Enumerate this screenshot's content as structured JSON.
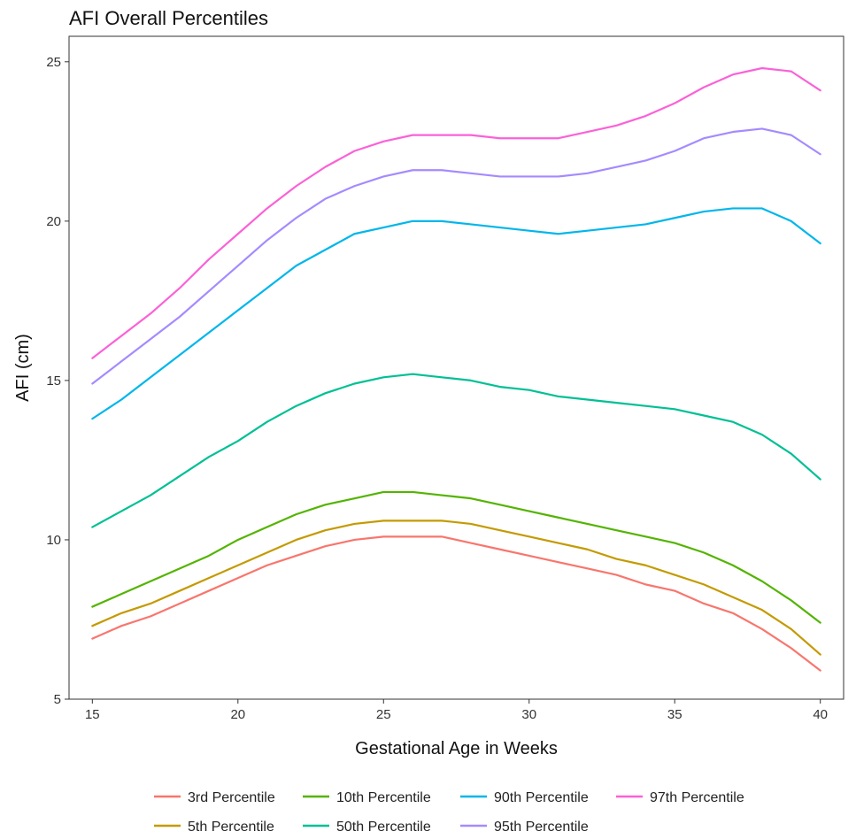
{
  "chart_data": {
    "type": "line",
    "title": "AFI Overall Percentiles",
    "xlabel": "Gestational Age in Weeks",
    "ylabel": "AFI (cm)",
    "xlim": [
      14.2,
      40.8
    ],
    "ylim": [
      5,
      25.8
    ],
    "xticks": [
      "15",
      "20",
      "25",
      "30",
      "35",
      "40"
    ],
    "yticks": [
      "5",
      "10",
      "15",
      "20",
      "25"
    ],
    "grid": false,
    "legend_position": "bottom",
    "x": [
      15,
      16,
      17,
      18,
      19,
      20,
      21,
      22,
      23,
      24,
      25,
      26,
      27,
      28,
      29,
      30,
      31,
      32,
      33,
      34,
      35,
      36,
      37,
      38,
      39,
      40
    ],
    "series": [
      {
        "name": "3rd Percentile",
        "color": "#F8766D",
        "values": [
          6.9,
          7.3,
          7.6,
          8.0,
          8.4,
          8.8,
          9.2,
          9.5,
          9.8,
          10.0,
          10.1,
          10.1,
          10.1,
          9.9,
          9.7,
          9.5,
          9.3,
          9.1,
          8.9,
          8.6,
          8.4,
          8.0,
          7.7,
          7.2,
          6.6,
          5.9
        ]
      },
      {
        "name": "5th Percentile",
        "color": "#C49A00",
        "values": [
          7.3,
          7.7,
          8.0,
          8.4,
          8.8,
          9.2,
          9.6,
          10.0,
          10.3,
          10.5,
          10.6,
          10.6,
          10.6,
          10.5,
          10.3,
          10.1,
          9.9,
          9.7,
          9.4,
          9.2,
          8.9,
          8.6,
          8.2,
          7.8,
          7.2,
          6.4
        ]
      },
      {
        "name": "10th Percentile",
        "color": "#53B400",
        "values": [
          7.9,
          8.3,
          8.7,
          9.1,
          9.5,
          10.0,
          10.4,
          10.8,
          11.1,
          11.3,
          11.5,
          11.5,
          11.4,
          11.3,
          11.1,
          10.9,
          10.7,
          10.5,
          10.3,
          10.1,
          9.9,
          9.6,
          9.2,
          8.7,
          8.1,
          7.4
        ]
      },
      {
        "name": "50th Percentile",
        "color": "#00C094",
        "values": [
          10.4,
          10.9,
          11.4,
          12.0,
          12.6,
          13.1,
          13.7,
          14.2,
          14.6,
          14.9,
          15.1,
          15.2,
          15.1,
          15.0,
          14.8,
          14.7,
          14.5,
          14.4,
          14.3,
          14.2,
          14.1,
          13.9,
          13.7,
          13.3,
          12.7,
          11.9
        ]
      },
      {
        "name": "90th Percentile",
        "color": "#00B6EB",
        "values": [
          13.8,
          14.4,
          15.1,
          15.8,
          16.5,
          17.2,
          17.9,
          18.6,
          19.1,
          19.6,
          19.8,
          20.0,
          20.0,
          19.9,
          19.8,
          19.7,
          19.6,
          19.7,
          19.8,
          19.9,
          20.1,
          20.3,
          20.4,
          20.4,
          20.0,
          19.3
        ]
      },
      {
        "name": "95th Percentile",
        "color": "#A58AFF",
        "values": [
          14.9,
          15.6,
          16.3,
          17.0,
          17.8,
          18.6,
          19.4,
          20.1,
          20.7,
          21.1,
          21.4,
          21.6,
          21.6,
          21.5,
          21.4,
          21.4,
          21.4,
          21.5,
          21.7,
          21.9,
          22.2,
          22.6,
          22.8,
          22.9,
          22.7,
          22.1
        ]
      },
      {
        "name": "97th Percentile",
        "color": "#FB61D7",
        "values": [
          15.7,
          16.4,
          17.1,
          17.9,
          18.8,
          19.6,
          20.4,
          21.1,
          21.7,
          22.2,
          22.5,
          22.7,
          22.7,
          22.7,
          22.6,
          22.6,
          22.6,
          22.8,
          23.0,
          23.3,
          23.7,
          24.2,
          24.6,
          24.8,
          24.7,
          24.1
        ]
      }
    ],
    "legend_order": [
      "3rd Percentile",
      "10th Percentile",
      "90th Percentile",
      "97th Percentile",
      "5th Percentile",
      "50th Percentile",
      "95th Percentile"
    ]
  }
}
